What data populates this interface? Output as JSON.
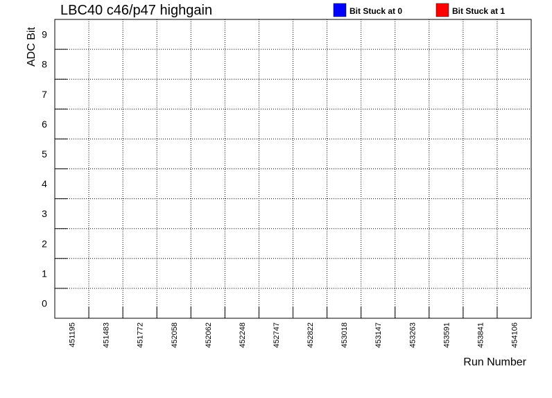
{
  "chart_data": {
    "type": "heatmap",
    "title": "LBC40 c46/p47 highgain",
    "xlabel": "Run Number",
    "ylabel": "ADC Bit",
    "categories": [
      "451195",
      "451483",
      "451772",
      "452058",
      "452062",
      "452248",
      "452747",
      "452822",
      "453018",
      "453147",
      "453263",
      "453591",
      "453841",
      "454106"
    ],
    "y_ticks": [
      "0",
      "1",
      "2",
      "3",
      "4",
      "5",
      "6",
      "7",
      "8",
      "9"
    ],
    "ylim": [
      0,
      10
    ],
    "grid": true,
    "legend_position": "top-right",
    "legend": [
      {
        "name": "Bit Stuck at 0",
        "color": "#0000ff"
      },
      {
        "name": "Bit Stuck at 1",
        "color": "#ff0000"
      }
    ],
    "cells": []
  }
}
